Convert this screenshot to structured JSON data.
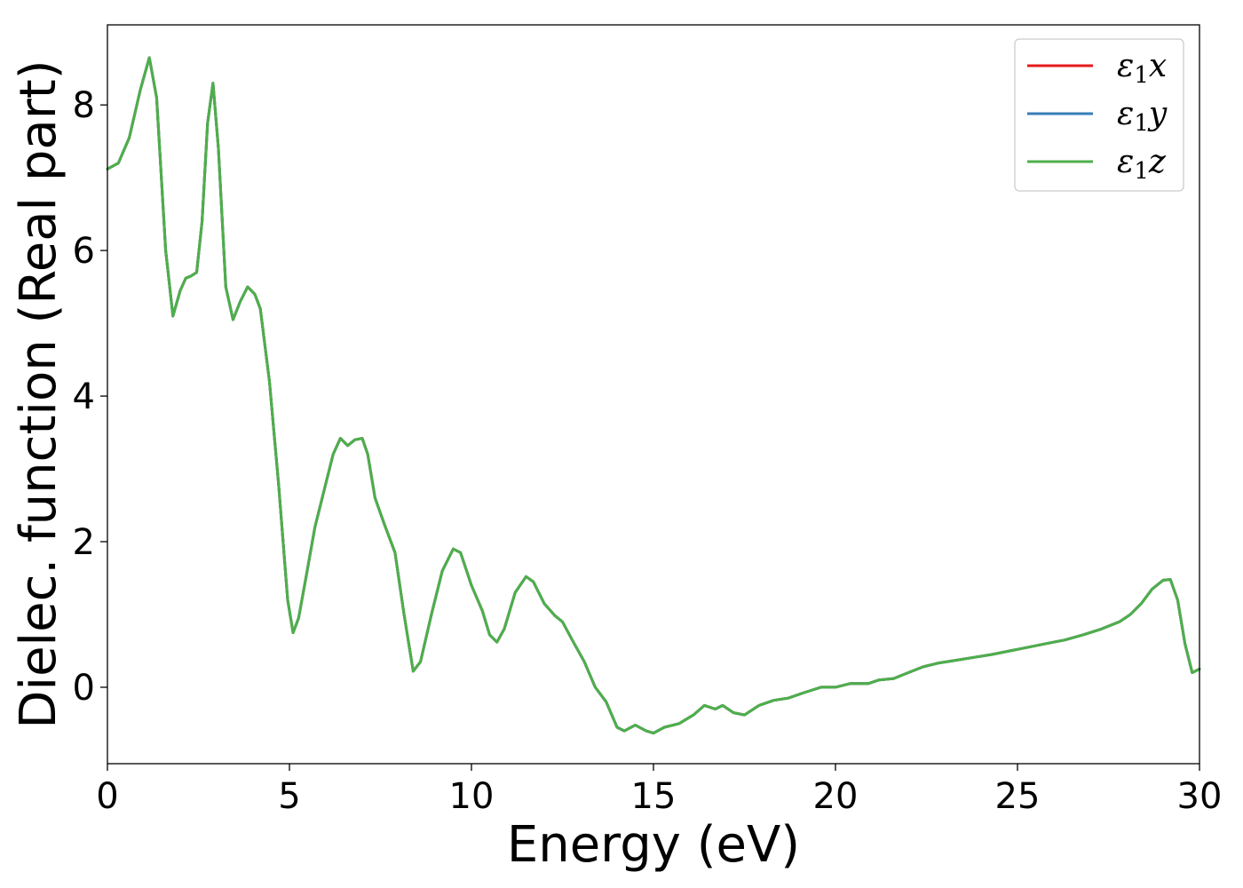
{
  "chart_data": {
    "type": "line",
    "xlabel": "Energy (eV)",
    "ylabel": "Dielec. function (Real part)",
    "xlim": [
      0,
      30
    ],
    "ylim": [
      -1.05,
      9.1
    ],
    "xticks": [
      0,
      5,
      10,
      15,
      20,
      25,
      30
    ],
    "yticks": [
      0,
      2,
      4,
      6,
      8
    ],
    "xtick_labels": [
      "0",
      "5",
      "10",
      "15",
      "20",
      "25",
      "30"
    ],
    "ytick_labels": [
      "0",
      "2",
      "4",
      "6",
      "8"
    ],
    "grid": false,
    "legend_position": "top-right",
    "series": [
      {
        "name": "ε1x",
        "legend_base": "ε",
        "legend_sub": "1",
        "legend_var": "x",
        "color": "#e41a1c"
      },
      {
        "name": "ε1y",
        "legend_base": "ε",
        "legend_sub": "1",
        "legend_var": "y",
        "color": "#377eb8"
      },
      {
        "name": "ε1z",
        "legend_base": "ε",
        "legend_sub": "1",
        "legend_var": "z",
        "color": "#4daf4a"
      }
    ],
    "x": [
      0,
      0.3,
      0.6,
      0.9,
      1.15,
      1.35,
      1.6,
      1.8,
      2.0,
      2.15,
      2.3,
      2.45,
      2.6,
      2.75,
      2.9,
      3.05,
      3.25,
      3.45,
      3.65,
      3.85,
      4.05,
      4.2,
      4.45,
      4.7,
      4.95,
      5.1,
      5.25,
      5.45,
      5.7,
      6.0,
      6.2,
      6.4,
      6.6,
      6.8,
      7.0,
      7.15,
      7.35,
      7.6,
      7.9,
      8.15,
      8.4,
      8.6,
      8.9,
      9.2,
      9.5,
      9.7,
      10.0,
      10.3,
      10.5,
      10.7,
      10.9,
      11.2,
      11.5,
      11.7,
      12.0,
      12.3,
      12.5,
      12.8,
      13.1,
      13.4,
      13.7,
      14.0,
      14.2,
      14.5,
      14.8,
      15.0,
      15.3,
      15.7,
      16.1,
      16.4,
      16.7,
      16.9,
      17.2,
      17.5,
      17.9,
      18.3,
      18.7,
      19.1,
      19.6,
      20.0,
      20.4,
      20.6,
      20.9,
      21.2,
      21.6,
      22.0,
      22.4,
      22.8,
      23.3,
      23.8,
      24.3,
      24.8,
      25.3,
      25.8,
      26.3,
      26.8,
      27.3,
      27.8,
      28.1,
      28.4,
      28.7,
      29.0,
      29.2,
      29.4,
      29.6,
      29.8,
      30.0
    ],
    "values": [
      7.12,
      7.2,
      7.55,
      8.2,
      8.65,
      8.1,
      6.0,
      5.1,
      5.45,
      5.62,
      5.65,
      5.7,
      6.4,
      7.75,
      8.3,
      7.4,
      5.5,
      5.05,
      5.3,
      5.5,
      5.4,
      5.2,
      4.2,
      2.8,
      1.2,
      0.75,
      0.95,
      1.5,
      2.2,
      2.8,
      3.2,
      3.42,
      3.32,
      3.4,
      3.42,
      3.2,
      2.6,
      2.25,
      1.85,
      1.0,
      0.22,
      0.35,
      1.0,
      1.6,
      1.9,
      1.85,
      1.4,
      1.05,
      0.72,
      0.62,
      0.8,
      1.3,
      1.52,
      1.45,
      1.15,
      0.98,
      0.9,
      0.62,
      0.35,
      0.0,
      -0.2,
      -0.55,
      -0.6,
      -0.52,
      -0.6,
      -0.63,
      -0.55,
      -0.5,
      -0.38,
      -0.25,
      -0.3,
      -0.25,
      -0.35,
      -0.38,
      -0.25,
      -0.18,
      -0.15,
      -0.08,
      0.0,
      0.0,
      0.05,
      0.05,
      0.05,
      0.1,
      0.12,
      0.2,
      0.28,
      0.33,
      0.37,
      0.41,
      0.45,
      0.5,
      0.55,
      0.6,
      0.65,
      0.72,
      0.8,
      0.9,
      1.0,
      1.15,
      1.35,
      1.47,
      1.48,
      1.2,
      0.6,
      0.2,
      0.25
    ]
  }
}
